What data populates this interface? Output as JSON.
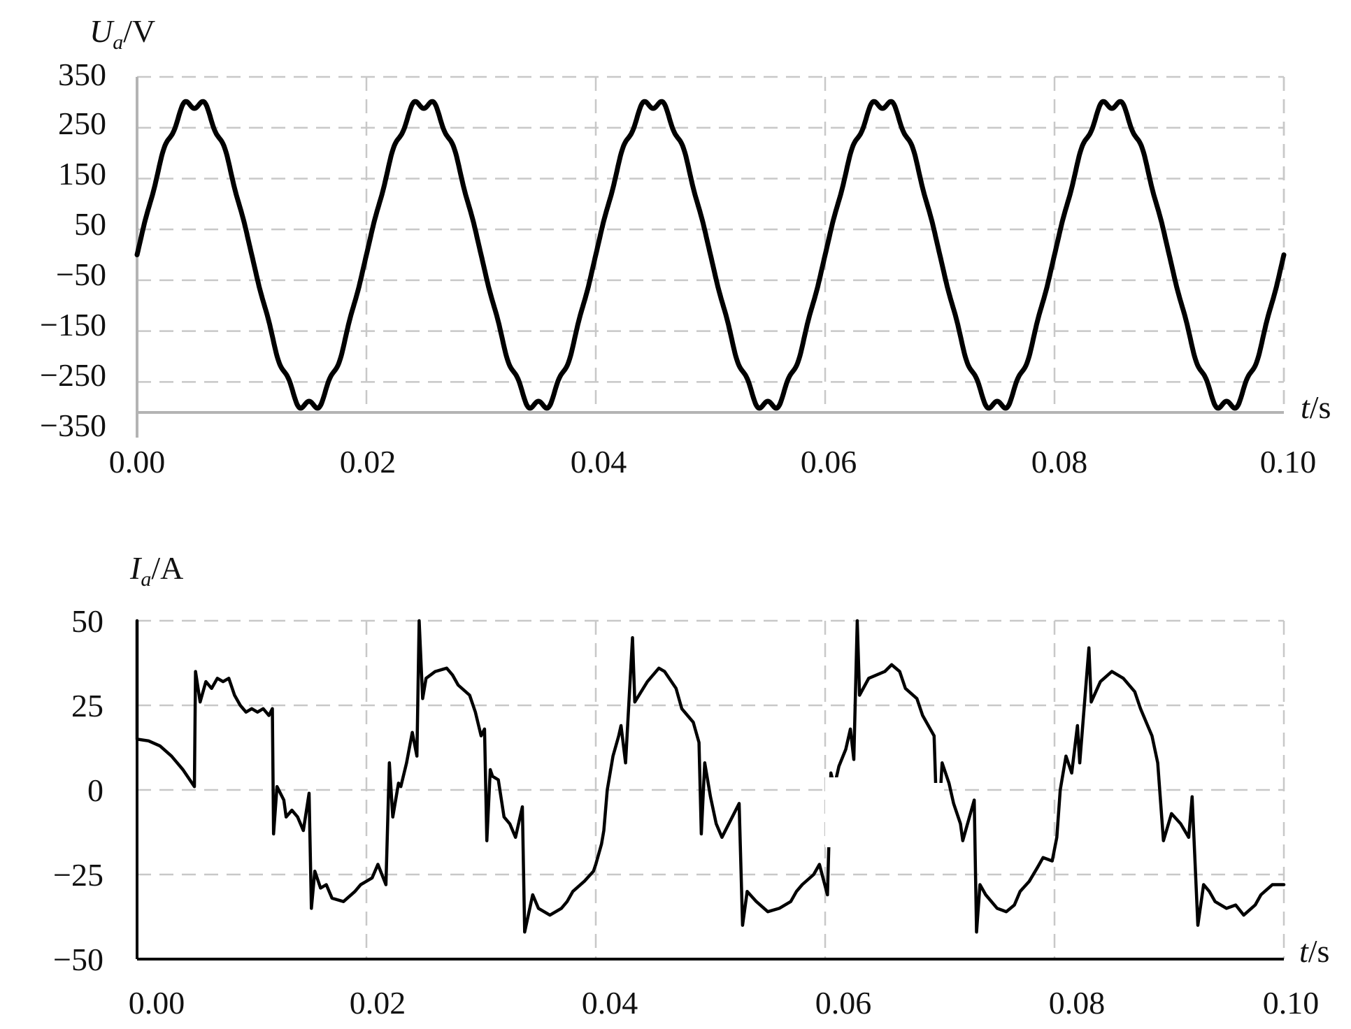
{
  "chart_data": [
    {
      "type": "line",
      "ylabel_symbol": "U",
      "ylabel_subscript": "a",
      "ylabel_unit": "/V",
      "xlabel_symbol": "t",
      "xlabel_unit": "/s",
      "xlim": [
        0,
        0.1
      ],
      "ylim": [
        -310,
        350
      ],
      "x_ticks": [
        "0.00",
        "0.02",
        "0.04",
        "0.06",
        "0.08",
        "0.10"
      ],
      "y_ticks": [
        {
          "value": 350,
          "label": "350"
        },
        {
          "value": 250,
          "label": "250"
        },
        {
          "value": 150,
          "label": "150"
        },
        {
          "value": 50,
          "label": "50"
        },
        {
          "value": -50,
          "label": "−50"
        },
        {
          "value": -150,
          "label": "−150"
        },
        {
          "value": -250,
          "label": "−250"
        },
        {
          "value": -350,
          "label": "−350"
        }
      ],
      "grid": true,
      "series": [
        {
          "amplitude": 300,
          "frequency_hz": 50,
          "x": [
            0,
            0.005,
            0.01,
            0.015,
            0.02,
            0.025,
            0.03,
            0.035,
            0.04,
            0.045,
            0.05,
            0.055,
            0.06,
            0.065,
            0.07,
            0.075,
            0.08,
            0.085,
            0.09,
            0.095,
            0.1
          ],
          "y": [
            0,
            320,
            0,
            -310,
            0,
            295,
            0,
            -310,
            0,
            300,
            0,
            -310,
            0,
            295,
            0,
            -310,
            0,
            300,
            0,
            -310,
            20
          ]
        }
      ]
    },
    {
      "type": "line",
      "ylabel_symbol": "I",
      "ylabel_subscript": "a",
      "ylabel_unit": "/A",
      "xlabel_symbol": "t",
      "xlabel_unit": "/s",
      "xlim": [
        0,
        0.1
      ],
      "ylim": [
        -50,
        50
      ],
      "x_ticks": [
        "0.00",
        "0.02",
        "0.04",
        "0.06",
        "0.08",
        "0.10"
      ],
      "y_ticks": [
        {
          "value": 50,
          "label": "50"
        },
        {
          "value": 25,
          "label": "25"
        },
        {
          "value": 0,
          "label": "0"
        },
        {
          "value": -25,
          "label": "−25"
        },
        {
          "value": -50,
          "label": "−50"
        }
      ],
      "grid": true,
      "series": [
        {
          "points": [
            [
              0.0,
              50
            ],
            [
              0.0,
              15
            ],
            [
              0.001,
              14.5
            ],
            [
              0.002,
              13
            ],
            [
              0.003,
              10
            ],
            [
              0.004,
              6
            ],
            [
              0.005,
              1
            ],
            [
              0.0051,
              35
            ],
            [
              0.0055,
              26
            ],
            [
              0.006,
              32
            ],
            [
              0.0065,
              30
            ],
            [
              0.007,
              33
            ],
            [
              0.0075,
              32
            ],
            [
              0.008,
              33
            ],
            [
              0.0085,
              28
            ],
            [
              0.009,
              25
            ],
            [
              0.0095,
              23
            ],
            [
              0.01,
              24
            ],
            [
              0.0105,
              23
            ],
            [
              0.011,
              24
            ],
            [
              0.0115,
              22
            ],
            [
              0.0118,
              24
            ],
            [
              0.0119,
              -13
            ],
            [
              0.0122,
              1
            ],
            [
              0.0128,
              -3
            ],
            [
              0.013,
              -8
            ],
            [
              0.0135,
              -6
            ],
            [
              0.014,
              -8
            ],
            [
              0.0145,
              -12
            ],
            [
              0.015,
              -1
            ],
            [
              0.0152,
              -35
            ],
            [
              0.0155,
              -24
            ],
            [
              0.016,
              -29
            ],
            [
              0.0165,
              -28
            ],
            [
              0.017,
              -32
            ],
            [
              0.018,
              -33
            ],
            [
              0.019,
              -30
            ],
            [
              0.0195,
              -28
            ],
            [
              0.02,
              -27
            ],
            [
              0.0205,
              -26
            ],
            [
              0.021,
              -22
            ],
            [
              0.0217,
              -28
            ],
            [
              0.022,
              8
            ],
            [
              0.0223,
              -8
            ],
            [
              0.0228,
              2
            ],
            [
              0.023,
              1
            ],
            [
              0.0235,
              8
            ],
            [
              0.024,
              17
            ],
            [
              0.0244,
              10
            ],
            [
              0.0246,
              50
            ],
            [
              0.0249,
              27
            ],
            [
              0.0252,
              33
            ],
            [
              0.026,
              35
            ],
            [
              0.027,
              36
            ],
            [
              0.0275,
              34
            ],
            [
              0.028,
              31
            ],
            [
              0.029,
              28
            ],
            [
              0.0295,
              23
            ],
            [
              0.03,
              16
            ],
            [
              0.0303,
              18
            ],
            [
              0.0305,
              -15
            ],
            [
              0.0308,
              6
            ],
            [
              0.031,
              4
            ],
            [
              0.0315,
              3
            ],
            [
              0.032,
              -8
            ],
            [
              0.0325,
              -10
            ],
            [
              0.033,
              -14
            ],
            [
              0.0336,
              -5
            ],
            [
              0.0338,
              -42
            ],
            [
              0.0345,
              -31
            ],
            [
              0.035,
              -35
            ],
            [
              0.036,
              -37
            ],
            [
              0.037,
              -35
            ],
            [
              0.0375,
              -33
            ],
            [
              0.038,
              -30
            ],
            [
              0.039,
              -27
            ],
            [
              0.0398,
              -24
            ],
            [
              0.04,
              -22
            ],
            [
              0.0405,
              -16
            ],
            [
              0.0407,
              -12
            ],
            [
              0.041,
              0
            ],
            [
              0.0415,
              10
            ],
            [
              0.042,
              16
            ],
            [
              0.0422,
              19
            ],
            [
              0.0426,
              8
            ],
            [
              0.0432,
              45
            ],
            [
              0.0434,
              26
            ],
            [
              0.0445,
              32
            ],
            [
              0.0455,
              36
            ],
            [
              0.046,
              35
            ],
            [
              0.047,
              30
            ],
            [
              0.0475,
              24
            ],
            [
              0.048,
              22
            ],
            [
              0.0485,
              20
            ],
            [
              0.049,
              14
            ],
            [
              0.0492,
              -13
            ],
            [
              0.0495,
              8
            ],
            [
              0.05,
              -2
            ],
            [
              0.0505,
              -10
            ],
            [
              0.051,
              -14
            ],
            [
              0.0525,
              -4
            ],
            [
              0.0528,
              -40
            ],
            [
              0.0532,
              -30
            ],
            [
              0.054,
              -33
            ],
            [
              0.055,
              -36
            ],
            [
              0.056,
              -35
            ],
            [
              0.057,
              -33
            ],
            [
              0.0575,
              -30
            ],
            [
              0.058,
              -28
            ],
            [
              0.059,
              -25
            ],
            [
              0.0595,
              -22
            ],
            [
              0.0602,
              -31
            ],
            [
              0.0605,
              5
            ],
            [
              0.0608,
              1
            ],
            [
              0.0612,
              7
            ],
            [
              0.0618,
              12
            ],
            [
              0.0622,
              18
            ],
            [
              0.0625,
              9
            ],
            [
              0.0628,
              50
            ],
            [
              0.063,
              28
            ],
            [
              0.0638,
              33
            ],
            [
              0.0645,
              34
            ],
            [
              0.0652,
              35
            ],
            [
              0.0658,
              37
            ],
            [
              0.0665,
              35
            ],
            [
              0.067,
              30
            ],
            [
              0.068,
              27
            ],
            [
              0.0685,
              22
            ],
            [
              0.0695,
              16
            ],
            [
              0.0698,
              -15
            ],
            [
              0.0702,
              8
            ],
            [
              0.0708,
              2
            ],
            [
              0.0712,
              -4
            ],
            [
              0.0718,
              -10
            ],
            [
              0.072,
              -15
            ],
            [
              0.073,
              -3
            ],
            [
              0.0732,
              -42
            ],
            [
              0.0735,
              -28
            ],
            [
              0.074,
              -31
            ],
            [
              0.075,
              -35
            ],
            [
              0.0758,
              -36
            ],
            [
              0.0765,
              -34
            ],
            [
              0.077,
              -30
            ],
            [
              0.0778,
              -27
            ],
            [
              0.0785,
              -23
            ],
            [
              0.079,
              -20
            ],
            [
              0.0798,
              -21
            ],
            [
              0.0802,
              -14
            ],
            [
              0.0805,
              0
            ],
            [
              0.081,
              10
            ],
            [
              0.0815,
              5
            ],
            [
              0.082,
              19
            ],
            [
              0.0822,
              8
            ],
            [
              0.083,
              42
            ],
            [
              0.0832,
              26
            ],
            [
              0.084,
              32
            ],
            [
              0.085,
              35
            ],
            [
              0.0855,
              34
            ],
            [
              0.086,
              33
            ],
            [
              0.087,
              29
            ],
            [
              0.0875,
              24
            ],
            [
              0.088,
              20
            ],
            [
              0.0885,
              16
            ],
            [
              0.089,
              8
            ],
            [
              0.0895,
              -15
            ],
            [
              0.0902,
              -7
            ],
            [
              0.091,
              -10
            ],
            [
              0.0917,
              -14
            ],
            [
              0.092,
              -2
            ],
            [
              0.0925,
              -40
            ],
            [
              0.093,
              -28
            ],
            [
              0.0935,
              -30
            ],
            [
              0.094,
              -33
            ],
            [
              0.095,
              -35
            ],
            [
              0.0958,
              -34
            ],
            [
              0.0965,
              -37
            ],
            [
              0.0975,
              -34
            ],
            [
              0.098,
              -31
            ],
            [
              0.099,
              -28
            ],
            [
              0.1,
              -28
            ]
          ]
        }
      ]
    }
  ]
}
